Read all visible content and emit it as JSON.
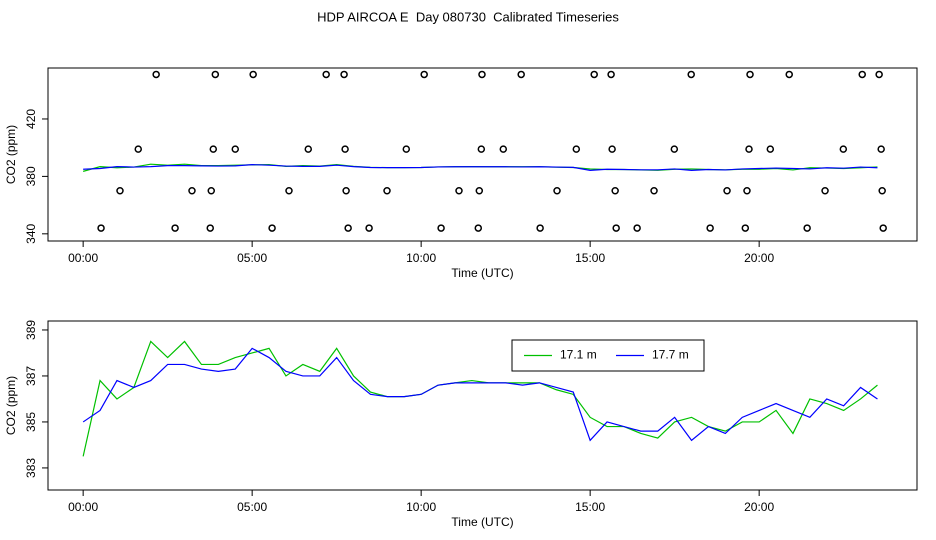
{
  "chart_data": [
    {
      "type": "line",
      "title": "HDP AIRCOA E  Day 080730  Calibrated Timeseries",
      "xlabel": "Time (UTC)",
      "ylabel": "CO2 (ppm)",
      "xlim": [
        -1.04,
        24.67
      ],
      "ylim": [
        335,
        455.5
      ],
      "xticks": [
        {
          "value": 0,
          "label": "00:00"
        },
        {
          "value": 5,
          "label": "05:00"
        },
        {
          "value": 10,
          "label": "10:00"
        },
        {
          "value": 15,
          "label": "15:00"
        },
        {
          "value": 20,
          "label": "20:00"
        }
      ],
      "yticks": [
        340,
        380,
        420
      ],
      "x": [
        0,
        0.5,
        1,
        1.5,
        2,
        2.5,
        3,
        3.5,
        4,
        4.5,
        5,
        5.5,
        6,
        6.5,
        7,
        7.5,
        8,
        8.5,
        9,
        9.5,
        10,
        10.5,
        11,
        11.5,
        12,
        12.5,
        13,
        13.5,
        14,
        14.5,
        15,
        15.5,
        16,
        16.5,
        17,
        17.5,
        18,
        18.5,
        19,
        19.5,
        20,
        20.5,
        21,
        21.5,
        22,
        22.5,
        23,
        23.5
      ],
      "series": [
        {
          "color": "#00c000",
          "values": [
            383.5,
            386.8,
            386,
            386.5,
            388.5,
            387.8,
            388.5,
            387.5,
            387.5,
            387.8,
            388,
            388.2,
            387,
            387.5,
            387.2,
            388.2,
            387,
            386.3,
            386.1,
            386.1,
            386.2,
            386.6,
            386.7,
            386.8,
            386.7,
            386.7,
            386.7,
            386.7,
            386.4,
            386.2,
            385.2,
            384.8,
            384.8,
            384.5,
            384.3,
            385,
            385.2,
            384.8,
            384.6,
            385,
            385,
            385.5,
            384.5,
            386,
            385.8,
            385.5,
            386,
            386.6
          ]
        },
        {
          "color": "#0000ff",
          "values": [
            385,
            385.5,
            386.8,
            386.5,
            386.8,
            387.5,
            387.5,
            387.3,
            387.2,
            387.3,
            388.2,
            387.8,
            387.2,
            387,
            387,
            387.8,
            386.8,
            386.2,
            386.1,
            386.1,
            386.2,
            386.6,
            386.7,
            386.7,
            386.7,
            386.7,
            386.6,
            386.7,
            386.5,
            386.3,
            384.2,
            385,
            384.8,
            384.6,
            384.6,
            385.2,
            384.2,
            384.8,
            384.5,
            385.2,
            385.5,
            385.8,
            385.5,
            385.2,
            386,
            385.7,
            386.5,
            386
          ]
        },
        {
          "type": "scatter",
          "color": "#000000",
          "x": [
            2.16,
            3.91,
            5.03,
            7.19,
            7.72,
            10.09,
            11.8,
            12.96,
            15.12,
            15.62,
            17.99,
            19.73,
            20.89,
            23.05,
            23.55,
            1.63,
            3.85,
            4.5,
            6.66,
            7.75,
            9.56,
            11.78,
            12.43,
            14.59,
            15.65,
            17.49,
            19.7,
            20.33,
            22.49,
            23.61,
            1.09,
            3.22,
            3.79,
            6.09,
            7.78,
            8.99,
            11.12,
            11.72,
            14.02,
            15.74,
            16.89,
            19.05,
            19.64,
            21.95,
            23.64,
            0.53,
            2.72,
            3.76,
            5.59,
            7.84,
            8.46,
            10.59,
            11.69,
            13.52,
            15.77,
            16.39,
            18.55,
            19.59,
            21.42,
            23.67
          ],
          "values": [
            451,
            451,
            451,
            451,
            451,
            451,
            451,
            451,
            451,
            451,
            451,
            451,
            451,
            451,
            451,
            399,
            399,
            399,
            399,
            399,
            399,
            399,
            399,
            399,
            399,
            399,
            399,
            399,
            399,
            399,
            370,
            370,
            370,
            370,
            370,
            370,
            370,
            370,
            370,
            370,
            370,
            370,
            370,
            370,
            370,
            344,
            344,
            344,
            344,
            344,
            344,
            344,
            344,
            344,
            344,
            344,
            344,
            344,
            344,
            344
          ]
        }
      ]
    },
    {
      "type": "line",
      "xlabel": "Time (UTC)",
      "ylabel": "CO2 (ppm)",
      "xlim": [
        -1.04,
        24.67
      ],
      "ylim": [
        382.04,
        389.39
      ],
      "xticks": [
        {
          "value": 0,
          "label": "00:00"
        },
        {
          "value": 5,
          "label": "05:00"
        },
        {
          "value": 10,
          "label": "10:00"
        },
        {
          "value": 15,
          "label": "15:00"
        },
        {
          "value": 20,
          "label": "20:00"
        }
      ],
      "yticks": [
        383,
        385,
        387,
        389
      ],
      "legend": "upper center",
      "x": [
        0,
        0.5,
        1,
        1.5,
        2,
        2.5,
        3,
        3.5,
        4,
        4.5,
        5,
        5.5,
        6,
        6.5,
        7,
        7.5,
        8,
        8.5,
        9,
        9.5,
        10,
        10.5,
        11,
        11.5,
        12,
        12.5,
        13,
        13.5,
        14,
        14.5,
        15,
        15.5,
        16,
        16.5,
        17,
        17.5,
        18,
        18.5,
        19,
        19.5,
        20,
        20.5,
        21,
        21.5,
        22,
        22.5,
        23,
        23.5
      ],
      "series": [
        {
          "name": "17.1 m",
          "color": "#00c000",
          "values": [
            383.5,
            386.8,
            386,
            386.5,
            388.5,
            387.8,
            388.5,
            387.5,
            387.5,
            387.8,
            388,
            388.2,
            387,
            387.5,
            387.2,
            388.2,
            387,
            386.3,
            386.1,
            386.1,
            386.2,
            386.6,
            386.7,
            386.8,
            386.7,
            386.7,
            386.7,
            386.7,
            386.4,
            386.2,
            385.2,
            384.8,
            384.8,
            384.5,
            384.3,
            385,
            385.2,
            384.8,
            384.6,
            385,
            385,
            385.5,
            384.5,
            386,
            385.8,
            385.5,
            386,
            386.6
          ]
        },
        {
          "name": "17.7 m",
          "color": "#0000ff",
          "values": [
            385,
            385.5,
            386.8,
            386.5,
            386.8,
            387.5,
            387.5,
            387.3,
            387.2,
            387.3,
            388.2,
            387.8,
            387.2,
            387,
            387,
            387.8,
            386.8,
            386.2,
            386.1,
            386.1,
            386.2,
            386.6,
            386.7,
            386.7,
            386.7,
            386.7,
            386.6,
            386.7,
            386.5,
            386.3,
            384.2,
            385,
            384.8,
            384.6,
            384.6,
            385.2,
            384.2,
            384.8,
            384.5,
            385.2,
            385.5,
            385.8,
            385.5,
            385.2,
            386,
            385.7,
            386.5,
            386
          ]
        }
      ]
    }
  ]
}
